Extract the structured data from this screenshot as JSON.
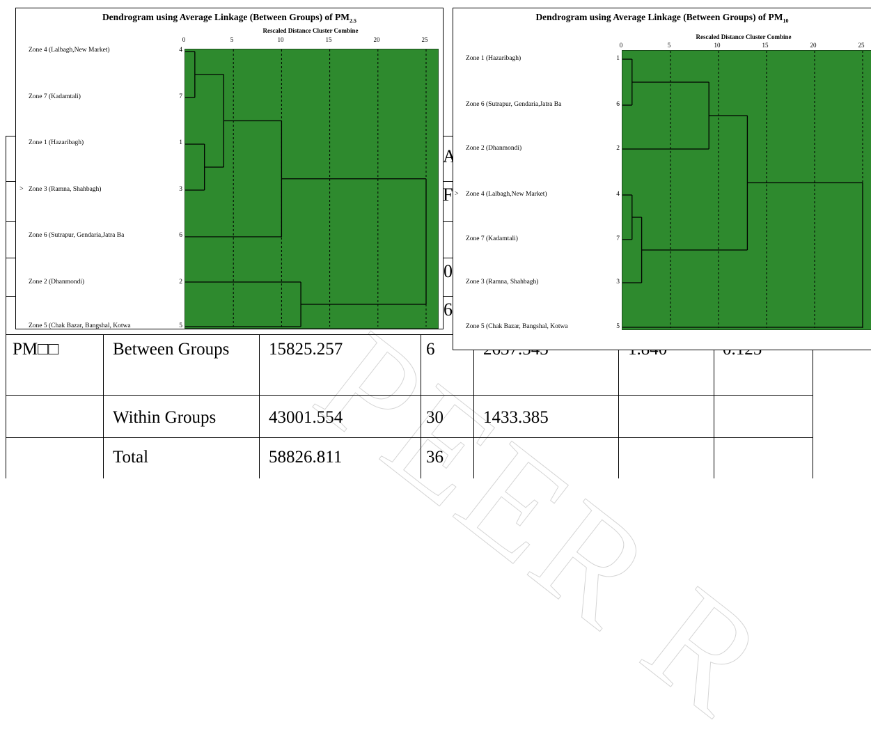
{
  "anova_table": {
    "rows": [
      {
        "variable": "PM□□",
        "source": "Between Groups",
        "sum_sq": "15825.257",
        "df": "6",
        "mean_sq": "2637.543",
        "f": "1.840",
        "sig": "0.125"
      },
      {
        "variable": "",
        "source": "Within Groups",
        "sum_sq": "43001.554",
        "df": "30",
        "mean_sq": "1433.385",
        "f": "",
        "sig": ""
      },
      {
        "variable": "",
        "source": "Total",
        "sum_sq": "58826.811",
        "df": "36",
        "mean_sq": "",
        "f": "",
        "sig": ""
      }
    ],
    "partial_fragments": [
      "A",
      "F",
      "0",
      "6"
    ]
  },
  "dendrogram_pm25": {
    "title": "Dendrogram using Average Linkage (Between Groups) of PM",
    "title_sub": "2.5",
    "axis_title": "Rescaled Distance Cluster Combine",
    "ticks": [
      "0",
      "5",
      "10",
      "15",
      "20",
      "25"
    ],
    "marker": ">",
    "cases": [
      {
        "label": "Zone 4 (Lalbagh,New Market)",
        "num": "4"
      },
      {
        "label": "Zone 7 (Kadamtali)",
        "num": "7"
      },
      {
        "label": "Zone 1 (Hazaribagh)",
        "num": "1"
      },
      {
        "label": "Zone 3 (Ramna, Shahbagh)",
        "num": "3"
      },
      {
        "label": "Zone 6 (Sutrapur, Gendaria,Jatra Ba",
        "num": "6"
      },
      {
        "label": "Zone 2 (Dhanmondi)",
        "num": "2"
      },
      {
        "label": "Zone 5 (Chak Bazar, Bangshal, Kotwa",
        "num": "5"
      }
    ],
    "merges": [
      {
        "a": 0,
        "b": 1,
        "dist": 1
      },
      {
        "a": 2,
        "b": 3,
        "dist": 2
      },
      {
        "a": "m0",
        "b": "m1",
        "dist": 4
      },
      {
        "a": "m2",
        "b": 4,
        "dist": 10
      },
      {
        "a": 5,
        "b": 6,
        "dist": 12
      },
      {
        "a": "m3",
        "b": "m4",
        "dist": 25
      }
    ]
  },
  "dendrogram_pm10": {
    "title": "Dendrogram using Average Linkage (Between Groups) of PM",
    "title_sub": "10",
    "axis_title": "Rescaled Distance Cluster Combine",
    "ticks": [
      "0",
      "5",
      "10",
      "15",
      "20",
      "25"
    ],
    "marker": ">",
    "cases": [
      {
        "label": "Zone 1 (Hazaribagh)",
        "num": "1"
      },
      {
        "label": "Zone 6 (Sutrapur, Gendaria,Jatra Ba",
        "num": "6"
      },
      {
        "label": "Zone 2 (Dhanmondi)",
        "num": "2"
      },
      {
        "label": "Zone 4 (Lalbagh,New Market)",
        "num": "4"
      },
      {
        "label": "Zone 7 (Kadamtali)",
        "num": "7"
      },
      {
        "label": "Zone 3 (Ramna, Shahbagh)",
        "num": "3"
      },
      {
        "label": "Zone 5 (Chak Bazar, Bangshal, Kotwa",
        "num": "5"
      }
    ],
    "merges": [
      {
        "a": 0,
        "b": 1,
        "dist": 1
      },
      {
        "a": "m0",
        "b": 2,
        "dist": 9
      },
      {
        "a": 3,
        "b": 4,
        "dist": 1
      },
      {
        "a": "m2",
        "b": 5,
        "dist": 2
      },
      {
        "a": "m1",
        "b": "m3",
        "dist": 13
      },
      {
        "a": "m4",
        "b": 6,
        "dist": 25
      }
    ]
  },
  "colors": {
    "plot_fill": "#2e8a2e",
    "line": "#000000",
    "watermark": "#d4d4d4"
  },
  "watermark_text": "PEER R"
}
